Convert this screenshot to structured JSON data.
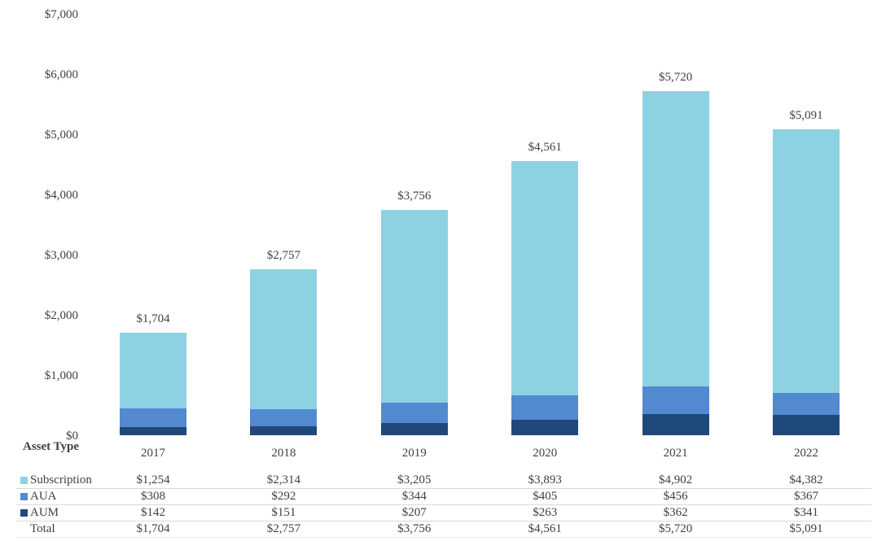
{
  "chart_data": {
    "type": "bar",
    "stacked": true,
    "title": "",
    "xlabel": "",
    "ylabel": "",
    "categories": [
      "2017",
      "2018",
      "2019",
      "2020",
      "2021",
      "2022"
    ],
    "series": [
      {
        "name": "Subscription",
        "color": "#8dd2e2",
        "values": [
          1254,
          2314,
          3205,
          3893,
          4902,
          4382
        ]
      },
      {
        "name": "AUA",
        "color": "#5389cf",
        "values": [
          308,
          292,
          344,
          405,
          456,
          367
        ]
      },
      {
        "name": "AUM",
        "color": "#20497b",
        "values": [
          142,
          151,
          207,
          263,
          362,
          341
        ]
      }
    ],
    "totals": [
      1704,
      2757,
      3756,
      4561,
      5720,
      5091
    ],
    "total_labels": [
      "$1,704",
      "$2,757",
      "$3,756",
      "$4,561",
      "$5,720",
      "$5,091"
    ],
    "y_axis": {
      "min": 0,
      "max": 7000,
      "step": 1000,
      "tick_values": [
        0,
        1000,
        2000,
        3000,
        4000,
        5000,
        6000,
        7000
      ],
      "tick_labels": [
        "$0",
        "$1,000",
        "$2,000",
        "$3,000",
        "$4,000",
        "$5,000",
        "$6,000",
        "$7,000"
      ]
    },
    "gridlines": false,
    "legend_position": "table-left"
  },
  "table": {
    "corner_label": "Asset Type",
    "columns": [
      "2017",
      "2018",
      "2019",
      "2020",
      "2021",
      "2022"
    ],
    "rows": [
      {
        "label": "Subscription",
        "swatch": "#8dd2e2",
        "values": [
          "$1,254",
          "$2,314",
          "$3,205",
          "$3,893",
          "$4,902",
          "$4,382"
        ]
      },
      {
        "label": "AUA",
        "swatch": "#5389cf",
        "values": [
          "$308",
          "$292",
          "$344",
          "$405",
          "$456",
          "$367"
        ]
      },
      {
        "label": "AUM",
        "swatch": "#20497b",
        "values": [
          "$142",
          "$151",
          "$207",
          "$263",
          "$362",
          "$341"
        ]
      },
      {
        "label": "Total",
        "swatch": null,
        "values": [
          "$1,704",
          "$2,757",
          "$3,756",
          "$4,561",
          "$5,720",
          "$5,091"
        ]
      }
    ]
  },
  "colors": {
    "background": "#ffffff",
    "text": "#404040",
    "separator_line": "#d9d9d9",
    "subscription": "#8dd2e2",
    "aua": "#5389cf",
    "aum": "#20497b"
  }
}
